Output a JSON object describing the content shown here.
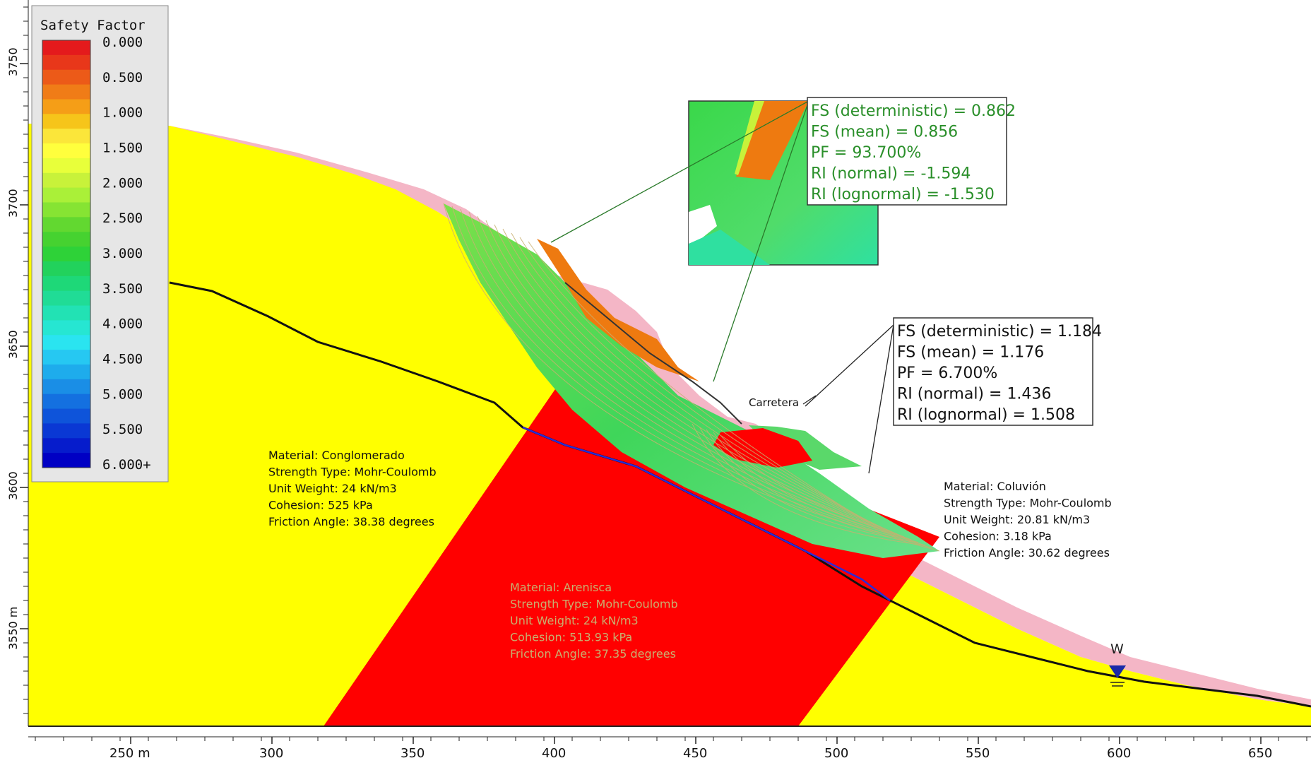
{
  "legend": {
    "title": "Safety Factor",
    "labels": [
      "0.000",
      "0.500",
      "1.000",
      "1.500",
      "2.000",
      "2.500",
      "3.000",
      "3.500",
      "4.000",
      "4.500",
      "5.000",
      "5.500",
      "6.000+"
    ],
    "bands": [
      "#e41a1c",
      "#e8371a",
      "#ec5a18",
      "#f07c17",
      "#f59e17",
      "#f6c51a",
      "#fbe63a",
      "#ffff3d",
      "#e8ff3a",
      "#c8f23a",
      "#aaf038",
      "#86e433",
      "#62d830",
      "#46d230",
      "#2ed238",
      "#22d25c",
      "#1ed878",
      "#20dc96",
      "#22e2b4",
      "#26e6d2",
      "#2ae4f0",
      "#26c8f2",
      "#1eacec",
      "#1a8ee6",
      "#1470e0",
      "#0e54da",
      "#0a38d4",
      "#061ccc",
      "#0000c4"
    ]
  },
  "axes": {
    "x_ticks": [
      "250 m",
      "300",
      "350",
      "400",
      "450",
      "500",
      "550",
      "600",
      "650"
    ],
    "y_ticks": [
      "3750",
      "3700",
      "3650",
      "3600",
      "3550 m"
    ]
  },
  "callouts": [
    {
      "lines": [
        "FS (deterministic) = 0.862",
        "FS (mean) = 0.856",
        "PF = 93.700%",
        "RI (normal) = -1.594",
        "RI (lognormal) = -1.530"
      ],
      "color": "#2a8f2a"
    },
    {
      "lines": [
        "FS (deterministic) = 1.184",
        "FS (mean) = 1.176",
        "PF = 6.700%",
        "RI (normal) = 1.436",
        "RI (lognormal) = 1.508"
      ],
      "color": "#111111"
    }
  ],
  "materials": [
    {
      "lines": [
        "Material: Conglomerado",
        "Strength Type: Mohr-Coulomb",
        "Unit Weight: 24 kN/m3",
        "Cohesion: 525 kPa",
        "Friction Angle: 38.38 degrees"
      ]
    },
    {
      "lines": [
        "Material: Arenisca",
        "Strength Type: Mohr-Coulomb",
        "Unit Weight: 24 kN/m3",
        "Cohesion: 513.93 kPa",
        "Friction Angle: 37.35 degrees"
      ]
    },
    {
      "lines": [
        "Material: Coluvión",
        "Strength Type: Mohr-Coulomb",
        "Unit Weight: 20.81 kN/m3",
        "Cohesion: 3.18 kPa",
        "Friction Angle: 30.62 degrees"
      ]
    }
  ],
  "labels": {
    "road": "Carretera",
    "water": "W"
  },
  "colors": {
    "conglomerado": "#ffff00",
    "arenisca": "#ff0000",
    "coluvion": "#f4b6c6",
    "water_line": "#2b2bd8",
    "bedding": "#111111"
  }
}
